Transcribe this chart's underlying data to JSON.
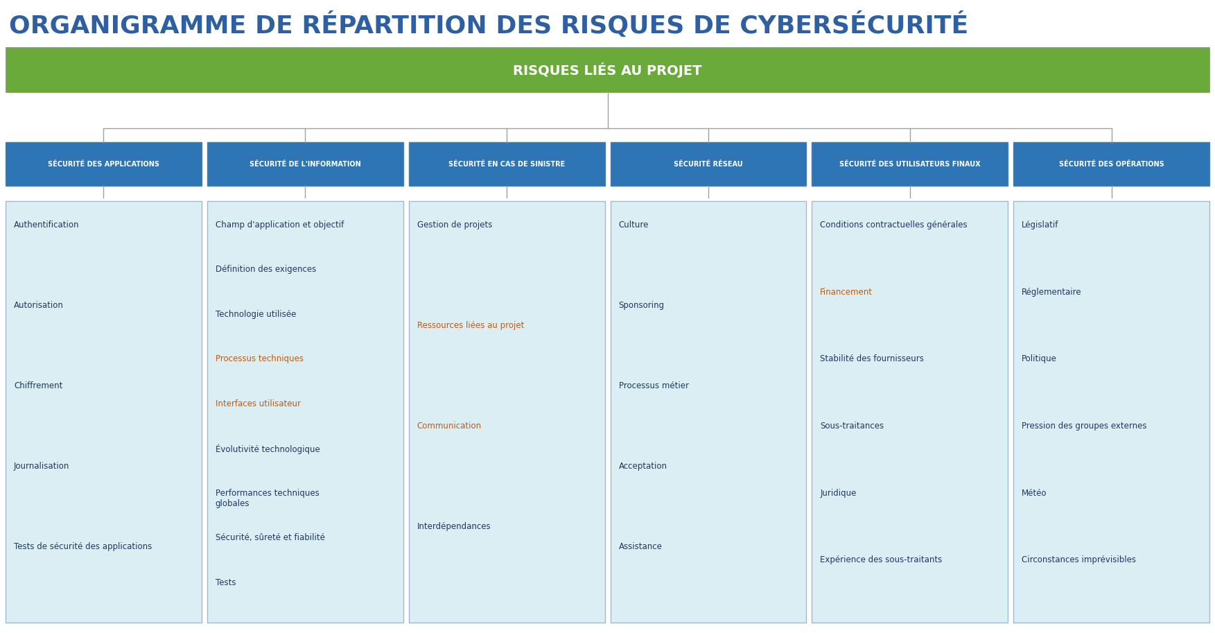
{
  "title": "ORGANIGRAMME DE RÉPARTITION DES RISQUES DE CYBERSÉCURITÉ",
  "root_label": "RISQUES LIÉS AU PROJET",
  "title_color": "#2E5FA3",
  "root_bg": "#6AAA3A",
  "root_text_color": "#FFFFFF",
  "header_bg": "#2E75B6",
  "header_text_color": "#FFFFFF",
  "cell_bg": "#DAEEF3",
  "cell_border": "#A0B8D0",
  "line_color": "#A0A0A0",
  "columns": [
    {
      "header": "SÉCURITÉ DES APPLICATIONS",
      "items": [
        {
          "text": "Authentification",
          "color": "#1F3864"
        },
        {
          "text": "Autorisation",
          "color": "#1F3864"
        },
        {
          "text": "Chiffrement",
          "color": "#1F3864"
        },
        {
          "text": "Journalisation",
          "color": "#1F3864"
        },
        {
          "text": "Tests de sécurité des applications",
          "color": "#1F3864"
        }
      ]
    },
    {
      "header": "SÉCURITÉ DE L'INFORMATION",
      "items": [
        {
          "text": "Champ d'application et objectif",
          "color": "#1F3864"
        },
        {
          "text": "Définition des exigences",
          "color": "#1F3864"
        },
        {
          "text": "Technologie utilisée",
          "color": "#1F3864"
        },
        {
          "text": "Processus techniques",
          "color": "#C55A11"
        },
        {
          "text": "Interfaces utilisateur",
          "color": "#C55A11"
        },
        {
          "text": "Évolutivité technologique",
          "color": "#1F3864"
        },
        {
          "text": "Performances techniques\nglobales",
          "color": "#1F3864"
        },
        {
          "text": "Sécurité, sûreté et fiabilité",
          "color": "#1F3864"
        },
        {
          "text": "Tests",
          "color": "#1F3864"
        }
      ]
    },
    {
      "header": "SÉCURITÉ EN CAS DE SINISTRE",
      "items": [
        {
          "text": "Gestion de projets",
          "color": "#1F3864"
        },
        {
          "text": "Ressources liées au projet",
          "color": "#C55A11"
        },
        {
          "text": "Communication",
          "color": "#C55A11"
        },
        {
          "text": "Interdépendances",
          "color": "#1F3864"
        }
      ]
    },
    {
      "header": "SÉCURITÉ RÉSEAU",
      "items": [
        {
          "text": "Culture",
          "color": "#1F3864"
        },
        {
          "text": "Sponsoring",
          "color": "#1F3864"
        },
        {
          "text": "Processus métier",
          "color": "#1F3864"
        },
        {
          "text": "Acceptation",
          "color": "#1F3864"
        },
        {
          "text": "Assistance",
          "color": "#1F3864"
        }
      ]
    },
    {
      "header": "SÉCURITÉ DES UTILISATEURS FINAUX",
      "items": [
        {
          "text": "Conditions contractuelles générales",
          "color": "#1F3864"
        },
        {
          "text": "Financement",
          "color": "#C55A11"
        },
        {
          "text": "Stabilité des fournisseurs",
          "color": "#1F3864"
        },
        {
          "text": "Sous-traitances",
          "color": "#1F3864"
        },
        {
          "text": "Juridique",
          "color": "#1F3864"
        },
        {
          "text": "Expérience des sous-traitants",
          "color": "#1F3864"
        }
      ]
    },
    {
      "header": "SÉCURITÉ DES OPÉRATIONS",
      "items": [
        {
          "text": "Législatif",
          "color": "#1F3864"
        },
        {
          "text": "Réglementaire",
          "color": "#1F3864"
        },
        {
          "text": "Politique",
          "color": "#1F3864"
        },
        {
          "text": "Pression des groupes externes",
          "color": "#1F3864"
        },
        {
          "text": "Météo",
          "color": "#1F3864"
        },
        {
          "text": "Circonstances imprévisibles",
          "color": "#1F3864"
        }
      ]
    }
  ]
}
